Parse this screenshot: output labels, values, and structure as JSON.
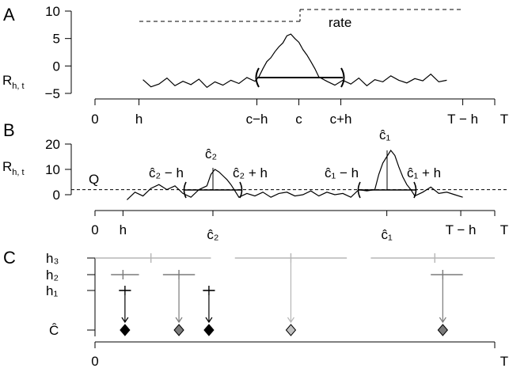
{
  "chart_data": [
    {
      "panel": "A",
      "type": "line",
      "ylabel_main": "R",
      "ylabel_sub": "h, t",
      "yticks": [
        "10",
        "5",
        "0",
        "-5"
      ],
      "ylim": [
        -5,
        10
      ],
      "xticks": [
        "0",
        "h",
        "c−h",
        "c",
        "c+h",
        "T − h",
        "T"
      ],
      "rate_label": "rate",
      "rate_levels": {
        "low": 8,
        "high": 10
      },
      "bracket_label": "( )",
      "series": [
        {
          "x": [
            0.12,
            0.14,
            0.16,
            0.18,
            0.2,
            0.22,
            0.24,
            0.26,
            0.28,
            0.3,
            0.32,
            0.34,
            0.36,
            0.38,
            0.4,
            0.41,
            0.42,
            0.43,
            0.44,
            0.45,
            0.46,
            0.47,
            0.48,
            0.49,
            0.5,
            0.51,
            0.52,
            0.53,
            0.54,
            0.55,
            0.56,
            0.58,
            0.6,
            0.62,
            0.64,
            0.66,
            0.68,
            0.7,
            0.72,
            0.74,
            0.76,
            0.78,
            0.8,
            0.82,
            0.84,
            0.86,
            0.88
          ],
          "y": [
            -2.5,
            -3.8,
            -3.3,
            -2.2,
            -3.6,
            -2.8,
            -3.4,
            -2.4,
            -3.9,
            -2.9,
            -3.5,
            -2.6,
            -3.2,
            -2.1,
            -2.8,
            -2.0,
            -0.5,
            0.8,
            1.5,
            2.6,
            3.5,
            4.2,
            5.5,
            5.8,
            5.0,
            4.3,
            3.0,
            2.0,
            0.8,
            -0.5,
            -2.0,
            -2.8,
            -3.5,
            -2.6,
            -3.3,
            -2.2,
            -3.6,
            -2.5,
            -2.9,
            -1.8,
            -2.6,
            -3.1,
            -2.3,
            -2.7,
            -1.5,
            -2.9,
            -2.6
          ]
        }
      ]
    },
    {
      "panel": "B",
      "type": "line",
      "ylabel_main": "R",
      "ylabel_sub": "h, t",
      "yticks": [
        "20",
        "10",
        "0"
      ],
      "ylim": [
        0,
        20
      ],
      "threshold_label": "Q",
      "threshold_value": 2,
      "xticks": [
        "0",
        "h",
        "ĉ₂",
        "ĉ₁",
        "T − h",
        "T"
      ],
      "peak_labels": {
        "c2_hat": "ĉ₂",
        "c2_left": "ĉ₂ − h",
        "c2_right": "ĉ₂ + h",
        "c1_hat": "ĉ₁",
        "c1_left": "ĉ₁ − h",
        "c1_right": "ĉ₁ + h"
      },
      "series": [
        {
          "x": [
            0.08,
            0.1,
            0.12,
            0.14,
            0.16,
            0.18,
            0.2,
            0.22,
            0.24,
            0.26,
            0.28,
            0.29,
            0.3,
            0.31,
            0.32,
            0.33,
            0.34,
            0.35,
            0.36,
            0.38,
            0.4,
            0.42,
            0.44,
            0.46,
            0.48,
            0.5,
            0.52,
            0.54,
            0.56,
            0.58,
            0.6,
            0.62,
            0.64,
            0.66,
            0.68,
            0.7,
            0.71,
            0.72,
            0.73,
            0.74,
            0.75,
            0.76,
            0.77,
            0.78,
            0.79,
            0.8,
            0.82,
            0.84,
            0.86,
            0.88,
            0.9,
            0.92
          ],
          "y": [
            -2.0,
            1.0,
            -0.5,
            2.5,
            4.0,
            2.0,
            3.5,
            0.5,
            -1.0,
            2.0,
            3.5,
            8.0,
            10.0,
            9.0,
            7.5,
            6.0,
            4.0,
            1.5,
            -1.0,
            0.5,
            -0.5,
            1.0,
            -1.0,
            0.5,
            1.0,
            -0.5,
            0.0,
            1.5,
            -0.5,
            1.0,
            0.0,
            0.5,
            -1.0,
            2.0,
            1.5,
            2.0,
            8.0,
            12.5,
            15.0,
            17.5,
            15.5,
            11.0,
            7.0,
            4.0,
            2.0,
            -0.5,
            1.0,
            3.0,
            0.5,
            1.0,
            0.0,
            -1.0
          ]
        }
      ]
    },
    {
      "panel": "C",
      "type": "interval",
      "row_labels": {
        "h3": "h₃",
        "h2": "h₂",
        "h1": "h₁",
        "c_hat": "Ĉ"
      },
      "xticks": [
        "0",
        "T"
      ],
      "intervals": {
        "h3": [
          {
            "start": 0.0,
            "end": 0.29,
            "mid": 0.14
          },
          {
            "start": 0.35,
            "end": 0.63,
            "mid": 0.49
          },
          {
            "start": 0.69,
            "end": 1.0,
            "mid": 0.85
          }
        ],
        "h2": [
          {
            "start": 0.04,
            "end": 0.11,
            "mid": 0.07
          },
          {
            "start": 0.17,
            "end": 0.25,
            "mid": 0.21
          },
          {
            "start": 0.84,
            "end": 0.92,
            "mid": 0.87
          }
        ],
        "h1": [
          {
            "start": 0.06,
            "end": 0.09,
            "mid": 0.075
          },
          {
            "start": 0.27,
            "end": 0.3,
            "mid": 0.285
          }
        ]
      },
      "estimates": [
        {
          "x": 0.075,
          "from": "h1",
          "shade": "black"
        },
        {
          "x": 0.21,
          "from": "h2",
          "shade": "gray"
        },
        {
          "x": 0.285,
          "from": "h1",
          "shade": "black"
        },
        {
          "x": 0.49,
          "from": "h3",
          "shade": "lightgray"
        },
        {
          "x": 0.87,
          "from": "h2",
          "shade": "gray"
        }
      ]
    }
  ],
  "panels": {
    "a_label": "A",
    "b_label": "B",
    "c_label": "C"
  },
  "colors": {
    "black": "#000000",
    "gray": "#7a7a7a",
    "lightgray": "#b5b5b5"
  }
}
